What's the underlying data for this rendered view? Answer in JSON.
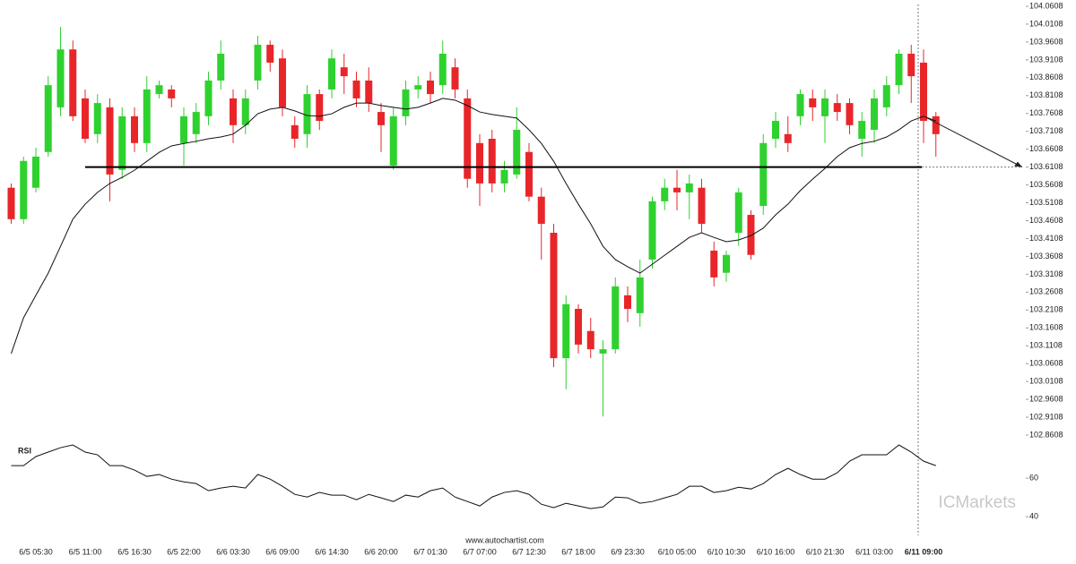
{
  "chart_data": [
    {
      "type": "candlestick",
      "categories": [
        null,
        null,
        "6/5 05:30",
        null,
        null,
        null,
        "6/5 11:00",
        null,
        null,
        null,
        "6/5 16:30",
        null,
        null,
        null,
        "6/5 22:00",
        null,
        null,
        null,
        "6/6 03:30",
        null,
        null,
        null,
        "6/6 09:00",
        null,
        null,
        null,
        "6/6 14:30",
        null,
        null,
        null,
        "6/6 20:00",
        null,
        null,
        null,
        "6/7 01:30",
        null,
        null,
        null,
        "6/7 07:00",
        null,
        null,
        null,
        "6/7 12:30",
        null,
        null,
        null,
        "6/7 18:00",
        null,
        null,
        null,
        "6/9 23:30",
        null,
        null,
        null,
        "6/10 05:00",
        null,
        null,
        null,
        "6/10 10:30",
        null,
        null,
        null,
        "6/10 16:00",
        null,
        null,
        null,
        "6/10 21:30",
        null,
        null,
        null,
        "6/11 03:00",
        null,
        null,
        null,
        "6/11 09:00",
        null
      ],
      "open": [
        103.553,
        103.465,
        103.553,
        103.653,
        103.778,
        103.94,
        103.803,
        103.703,
        103.778,
        103.603,
        103.753,
        103.678,
        103.815,
        103.828,
        103.678,
        103.703,
        103.753,
        103.853,
        103.803,
        103.728,
        103.853,
        103.953,
        103.915,
        103.728,
        103.703,
        103.815,
        103.828,
        103.89,
        103.853,
        103.853,
        103.765,
        103.615,
        103.753,
        103.828,
        103.853,
        103.84,
        103.89,
        103.803,
        103.678,
        103.69,
        103.565,
        103.59,
        103.653,
        103.528,
        103.427,
        103.076,
        103.214,
        103.152,
        103.089,
        103.101,
        103.252,
        103.202,
        103.352,
        103.515,
        103.553,
        103.54,
        103.553,
        103.377,
        103.315,
        103.427,
        103.477,
        103.502,
        103.69,
        103.703,
        103.753,
        103.803,
        103.753,
        103.79,
        103.79,
        103.69,
        103.715,
        103.778,
        103.84,
        103.928,
        103.903,
        103.753
      ],
      "high": [
        103.565,
        103.64,
        103.665,
        103.865,
        104.003,
        103.965,
        103.828,
        103.815,
        103.803,
        103.778,
        103.778,
        103.865,
        103.853,
        103.84,
        103.778,
        103.79,
        103.878,
        103.965,
        103.828,
        103.828,
        103.978,
        103.965,
        103.94,
        103.753,
        103.84,
        103.828,
        103.94,
        103.928,
        103.878,
        103.89,
        103.79,
        103.778,
        103.853,
        103.865,
        103.878,
        103.965,
        103.915,
        103.828,
        103.703,
        103.715,
        103.628,
        103.778,
        103.678,
        103.553,
        103.452,
        103.252,
        103.227,
        103.189,
        103.126,
        103.302,
        103.277,
        103.352,
        103.528,
        103.578,
        103.603,
        103.59,
        103.578,
        103.402,
        103.377,
        103.553,
        103.49,
        103.703,
        103.765,
        103.753,
        103.828,
        103.828,
        103.828,
        103.815,
        103.803,
        103.765,
        103.828,
        103.865,
        103.94,
        103.953,
        103.94,
        103.765
      ],
      "low": [
        103.452,
        103.452,
        103.54,
        103.64,
        103.753,
        103.74,
        103.678,
        103.678,
        103.515,
        103.578,
        103.653,
        103.653,
        103.803,
        103.778,
        103.615,
        103.678,
        103.728,
        103.828,
        103.678,
        103.703,
        103.828,
        103.878,
        103.753,
        103.665,
        103.665,
        103.715,
        103.803,
        103.815,
        103.778,
        103.765,
        103.653,
        103.603,
        103.728,
        103.803,
        103.79,
        103.815,
        103.803,
        103.553,
        103.502,
        103.54,
        103.54,
        103.578,
        103.515,
        103.352,
        103.051,
        102.989,
        103.089,
        103.076,
        102.913,
        103.089,
        103.177,
        103.164,
        103.327,
        103.49,
        103.49,
        103.465,
        103.427,
        103.277,
        103.29,
        103.39,
        103.352,
        103.477,
        103.665,
        103.653,
        103.728,
        103.74,
        103.678,
        103.74,
        103.703,
        103.64,
        103.678,
        103.753,
        103.815,
        103.79,
        103.678,
        103.64
      ],
      "close": [
        103.465,
        103.628,
        103.64,
        103.84,
        103.94,
        103.753,
        103.69,
        103.79,
        103.59,
        103.753,
        103.678,
        103.828,
        103.84,
        103.803,
        103.753,
        103.765,
        103.853,
        103.928,
        103.728,
        103.803,
        103.953,
        103.903,
        103.778,
        103.69,
        103.815,
        103.74,
        103.915,
        103.865,
        103.803,
        103.79,
        103.728,
        103.753,
        103.828,
        103.84,
        103.815,
        103.928,
        103.828,
        103.578,
        103.565,
        103.565,
        103.603,
        103.715,
        103.528,
        103.452,
        103.076,
        103.227,
        103.114,
        103.101,
        103.101,
        103.277,
        103.214,
        103.302,
        103.515,
        103.553,
        103.54,
        103.565,
        103.452,
        103.302,
        103.365,
        103.54,
        103.365,
        103.678,
        103.74,
        103.678,
        103.815,
        103.778,
        103.803,
        103.765,
        103.728,
        103.74,
        103.803,
        103.84,
        103.928,
        103.865,
        103.74,
        103.703
      ],
      "ma": [
        103.089,
        103.189,
        103.252,
        103.314,
        103.389,
        103.465,
        103.507,
        103.54,
        103.565,
        103.582,
        103.602,
        103.627,
        103.652,
        103.67,
        103.677,
        103.683,
        103.69,
        103.695,
        103.703,
        103.728,
        103.76,
        103.773,
        103.778,
        103.768,
        103.755,
        103.753,
        103.76,
        103.778,
        103.79,
        103.79,
        103.783,
        103.778,
        103.773,
        103.778,
        103.79,
        103.803,
        103.798,
        103.783,
        103.765,
        103.758,
        103.753,
        103.748,
        103.715,
        103.677,
        103.627,
        103.565,
        103.507,
        103.452,
        103.389,
        103.352,
        103.332,
        103.314,
        103.339,
        103.364,
        103.389,
        103.414,
        103.427,
        103.414,
        103.402,
        103.407,
        103.419,
        103.44,
        103.477,
        103.507,
        103.545,
        103.577,
        103.607,
        103.64,
        103.665,
        103.677,
        103.683,
        103.695,
        103.715,
        103.74,
        103.753,
        103.74
      ],
      "up_color": "#2fd12f",
      "down_color": "#e8262a",
      "ma_color": "#111111",
      "support": 103.6108,
      "ylim": [
        102.8608,
        104.0608
      ],
      "yticks": [
        104.0608,
        104.0108,
        103.9608,
        103.9108,
        103.8608,
        103.8108,
        103.7608,
        103.7108,
        103.6608,
        103.6108,
        103.5608,
        103.5108,
        103.4608,
        103.4108,
        103.3608,
        103.3108,
        103.2608,
        103.2108,
        103.1608,
        103.1108,
        103.0608,
        103.0108,
        102.9608,
        102.9108,
        102.8608
      ]
    },
    {
      "type": "line",
      "title": "RSI",
      "values": [
        66.5,
        66.5,
        71.2,
        73.5,
        75.8,
        77.2,
        73.5,
        72.1,
        66.5,
        66.5,
        64.2,
        60.9,
        61.9,
        59.5,
        58.1,
        57.2,
        53.5,
        54.9,
        55.8,
        54.9,
        61.9,
        59.5,
        55.8,
        51.6,
        50.2,
        52.6,
        51.2,
        51.2,
        48.8,
        51.6,
        49.8,
        47.9,
        51.2,
        50.2,
        53.5,
        54.9,
        50.2,
        47.9,
        45.6,
        50.2,
        52.6,
        53.5,
        51.6,
        46.5,
        44.7,
        47.0,
        45.6,
        44.2,
        45.1,
        50.2,
        49.8,
        47.0,
        47.9,
        49.8,
        51.6,
        55.8,
        55.8,
        52.6,
        53.5,
        55.3,
        54.4,
        57.2,
        61.9,
        65.1,
        61.9,
        59.5,
        59.5,
        62.8,
        68.8,
        72.1,
        72.1,
        72.1,
        77.2,
        73.5,
        68.8,
        66.5
      ],
      "color": "#111111",
      "ylim": [
        35,
        80
      ],
      "yticks": [
        60,
        40
      ]
    }
  ],
  "footer": {
    "watermark": "www.autochartist.com",
    "logo": "ICMarkets"
  }
}
